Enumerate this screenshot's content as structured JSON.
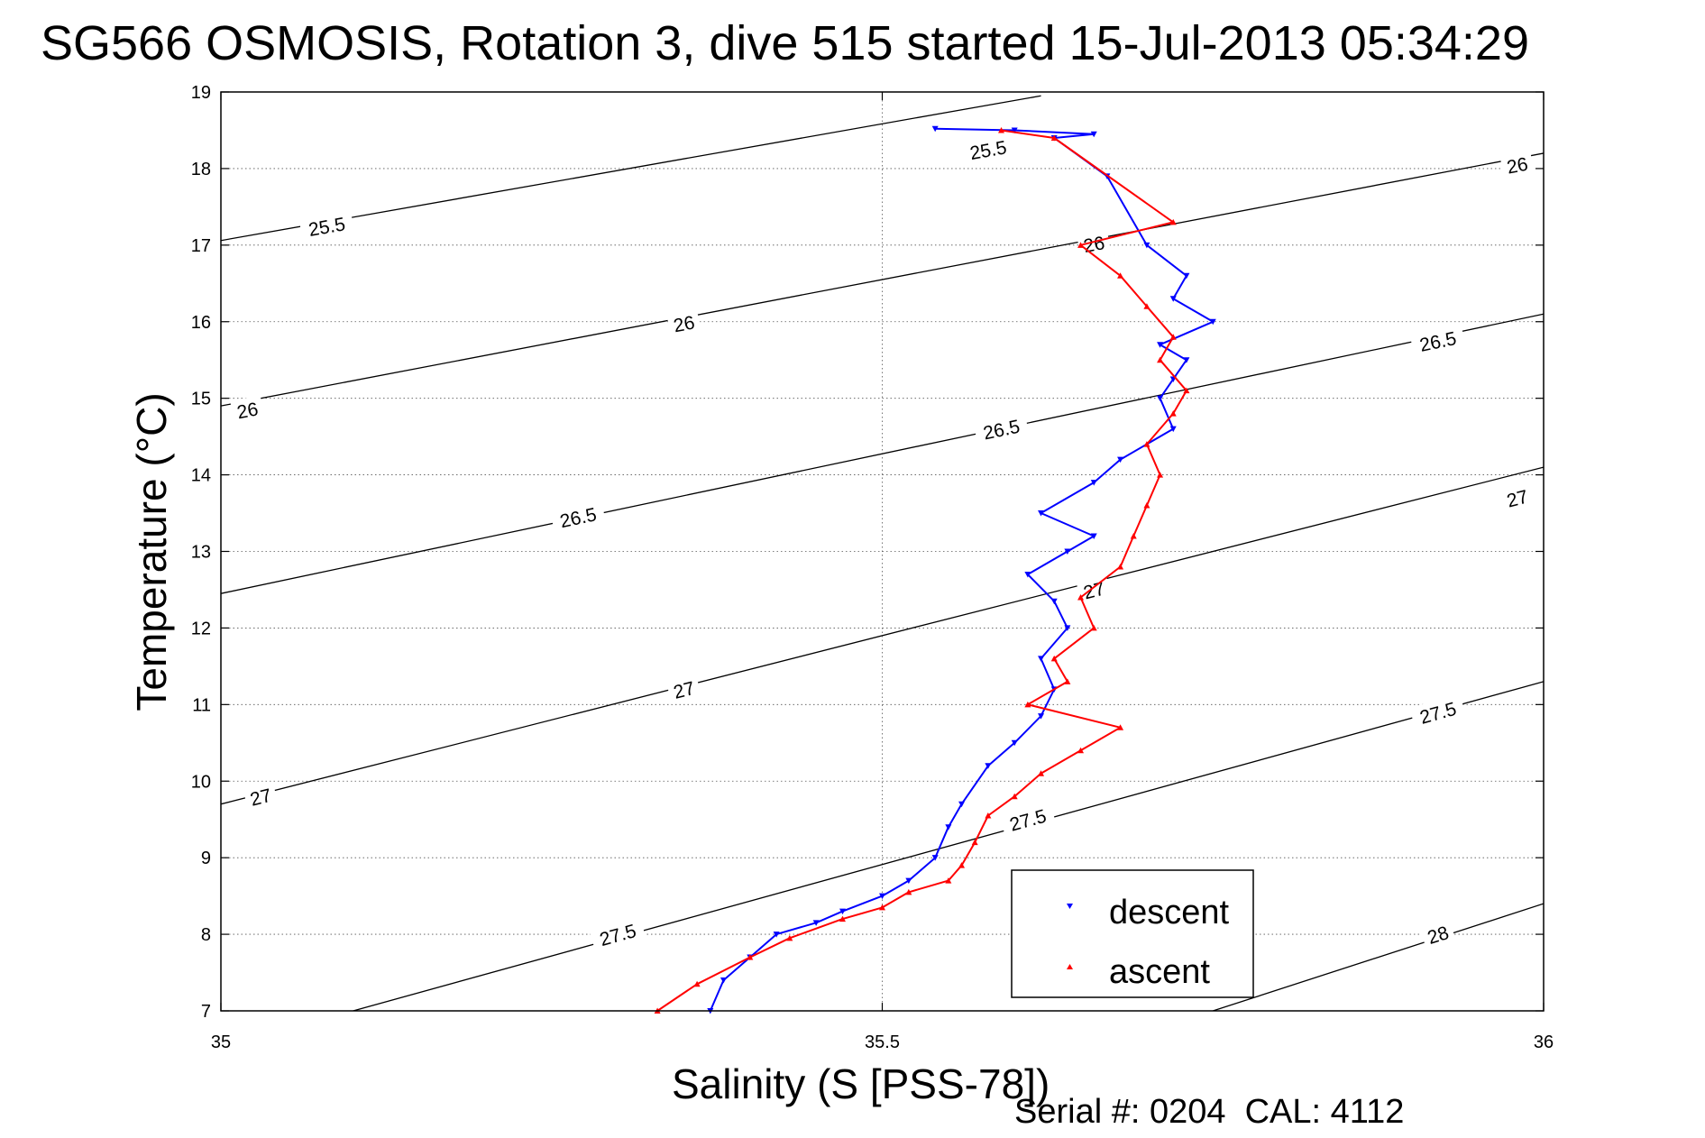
{
  "chart_data": {
    "type": "scatter",
    "title": "SG566 OSMOSIS, Rotation 3, dive 515 started 15-Jul-2013 05:34:29",
    "xlabel": "Salinity (S [PSS-78])",
    "ylabel": "Temperature (°C)",
    "xlim": [
      35,
      36
    ],
    "ylim": [
      7,
      19
    ],
    "x_ticks": [
      "35",
      "35.5",
      "36"
    ],
    "y_ticks": [
      "7",
      "8",
      "9",
      "10",
      "11",
      "12",
      "13",
      "14",
      "15",
      "16",
      "17",
      "18",
      "19"
    ],
    "grid": true,
    "legend_position": "lower-right",
    "footer": "Serial #: 0204  CAL: 4112",
    "density_contours": [
      {
        "label": "25.5",
        "labels": [
          [
            35.08,
            17.25
          ],
          [
            35.58,
            18.25
          ]
        ],
        "points": [
          [
            35.0,
            17.06
          ],
          [
            35.62,
            18.95
          ]
        ]
      },
      {
        "label": "26",
        "labels": [
          [
            35.02,
            14.85
          ],
          [
            35.35,
            15.98
          ],
          [
            35.66,
            17.02
          ],
          [
            35.98,
            18.05
          ]
        ],
        "points": [
          [
            35.0,
            14.9
          ],
          [
            36.0,
            18.2
          ]
        ]
      },
      {
        "label": "26.5",
        "labels": [
          [
            35.27,
            13.45
          ],
          [
            35.59,
            14.6
          ],
          [
            35.92,
            15.75
          ]
        ],
        "points": [
          [
            35.0,
            12.45
          ],
          [
            36.0,
            16.1
          ]
        ]
      },
      {
        "label": "27",
        "labels": [
          [
            35.03,
            9.8
          ],
          [
            35.35,
            11.2
          ],
          [
            35.66,
            12.5
          ],
          [
            35.98,
            13.7
          ]
        ],
        "points": [
          [
            35.0,
            9.7
          ],
          [
            36.0,
            14.1
          ]
        ]
      },
      {
        "label": "27.5",
        "labels": [
          [
            35.3,
            8.0
          ],
          [
            35.61,
            9.5
          ],
          [
            35.92,
            10.9
          ]
        ],
        "points": [
          [
            35.1,
            7.0
          ],
          [
            36.0,
            11.3
          ]
        ]
      },
      {
        "label": "28",
        "labels": [
          [
            35.92,
            8.0
          ]
        ],
        "points": [
          [
            35.75,
            7.0
          ],
          [
            36.0,
            8.4
          ]
        ]
      }
    ],
    "series": [
      {
        "name": "descent",
        "color": "#0000ff",
        "marker": "triangle-down",
        "x": [
          35.37,
          35.38,
          35.4,
          35.42,
          35.45,
          35.47,
          35.5,
          35.52,
          35.54,
          35.55,
          35.56,
          35.58,
          35.6,
          35.62,
          35.63,
          35.62,
          35.64,
          35.63,
          35.61,
          35.64,
          35.66,
          35.62,
          35.66,
          35.68,
          35.72,
          35.71,
          35.72,
          35.73,
          35.71,
          35.75,
          35.72,
          35.73,
          35.7,
          35.67,
          35.63,
          35.66,
          35.6,
          35.54
        ],
        "y": [
          7.0,
          7.4,
          7.7,
          8.0,
          8.15,
          8.3,
          8.5,
          8.7,
          9.0,
          9.4,
          9.7,
          10.2,
          10.5,
          10.85,
          11.2,
          11.6,
          12.0,
          12.35,
          12.7,
          13.0,
          13.2,
          13.5,
          13.9,
          14.2,
          14.6,
          15.0,
          15.25,
          15.5,
          15.7,
          16.0,
          16.3,
          16.6,
          17.0,
          17.9,
          18.4,
          18.45,
          18.5,
          18.52
        ]
      },
      {
        "name": "ascent",
        "color": "#ff0000",
        "marker": "triangle-up",
        "x": [
          35.33,
          35.36,
          35.4,
          35.43,
          35.47,
          35.5,
          35.52,
          35.55,
          35.56,
          35.57,
          35.58,
          35.6,
          35.62,
          35.65,
          35.68,
          35.61,
          35.64,
          35.63,
          35.66,
          35.65,
          35.68,
          35.69,
          35.7,
          35.71,
          35.7,
          35.72,
          35.73,
          35.71,
          35.72,
          35.7,
          35.68,
          35.65,
          35.72,
          35.63,
          35.59
        ],
        "y": [
          7.0,
          7.35,
          7.7,
          7.95,
          8.2,
          8.35,
          8.55,
          8.7,
          8.9,
          9.2,
          9.55,
          9.8,
          10.1,
          10.4,
          10.7,
          11.0,
          11.3,
          11.6,
          12.0,
          12.4,
          12.8,
          13.2,
          13.6,
          14.0,
          14.4,
          14.8,
          15.1,
          15.5,
          15.8,
          16.2,
          16.6,
          17.0,
          17.3,
          18.4,
          18.5
        ]
      }
    ]
  }
}
